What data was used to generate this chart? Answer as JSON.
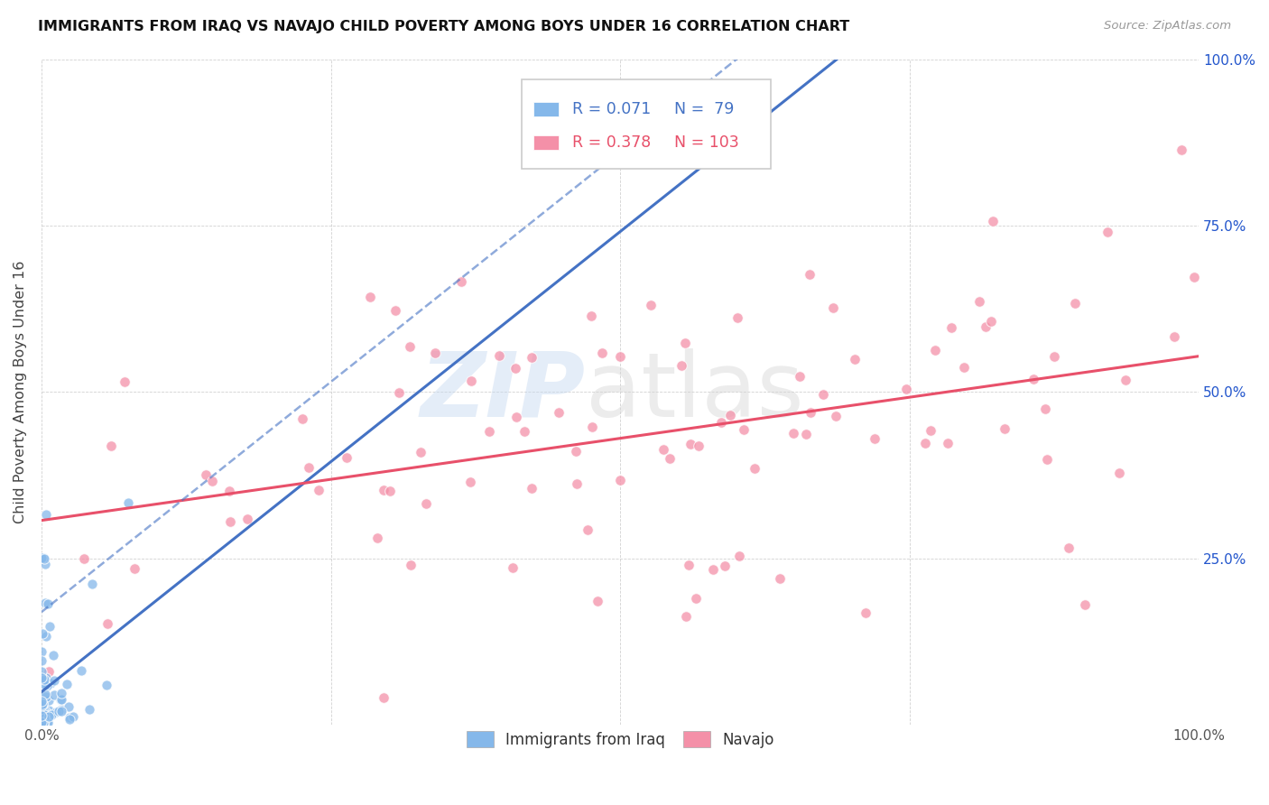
{
  "title": "IMMIGRANTS FROM IRAQ VS NAVAJO CHILD POVERTY AMONG BOYS UNDER 16 CORRELATION CHART",
  "source": "Source: ZipAtlas.com",
  "ylabel": "Child Poverty Among Boys Under 16",
  "series1_label": "Immigrants from Iraq",
  "series2_label": "Navajo",
  "series1_R": 0.071,
  "series1_N": 79,
  "series2_R": 0.378,
  "series2_N": 103,
  "series1_color": "#85B8EA",
  "series2_color": "#F490A8",
  "series1_line_color": "#4472C4",
  "series2_line_color": "#E8506A",
  "background_color": "#FFFFFF",
  "xlim": [
    0,
    1
  ],
  "ylim": [
    0,
    1
  ],
  "x_ticks": [
    0.0,
    0.25,
    0.5,
    0.75,
    1.0
  ],
  "x_tick_labels": [
    "0.0%",
    "",
    "",
    "",
    "100.0%"
  ],
  "y_ticks": [
    0.0,
    0.25,
    0.5,
    0.75,
    1.0
  ],
  "y_tick_labels": [
    "",
    "",
    "",
    "",
    ""
  ],
  "right_y_tick_labels": [
    "",
    "25.0%",
    "50.0%",
    "75.0%",
    "100.0%"
  ],
  "seed1": 7,
  "seed2": 42
}
